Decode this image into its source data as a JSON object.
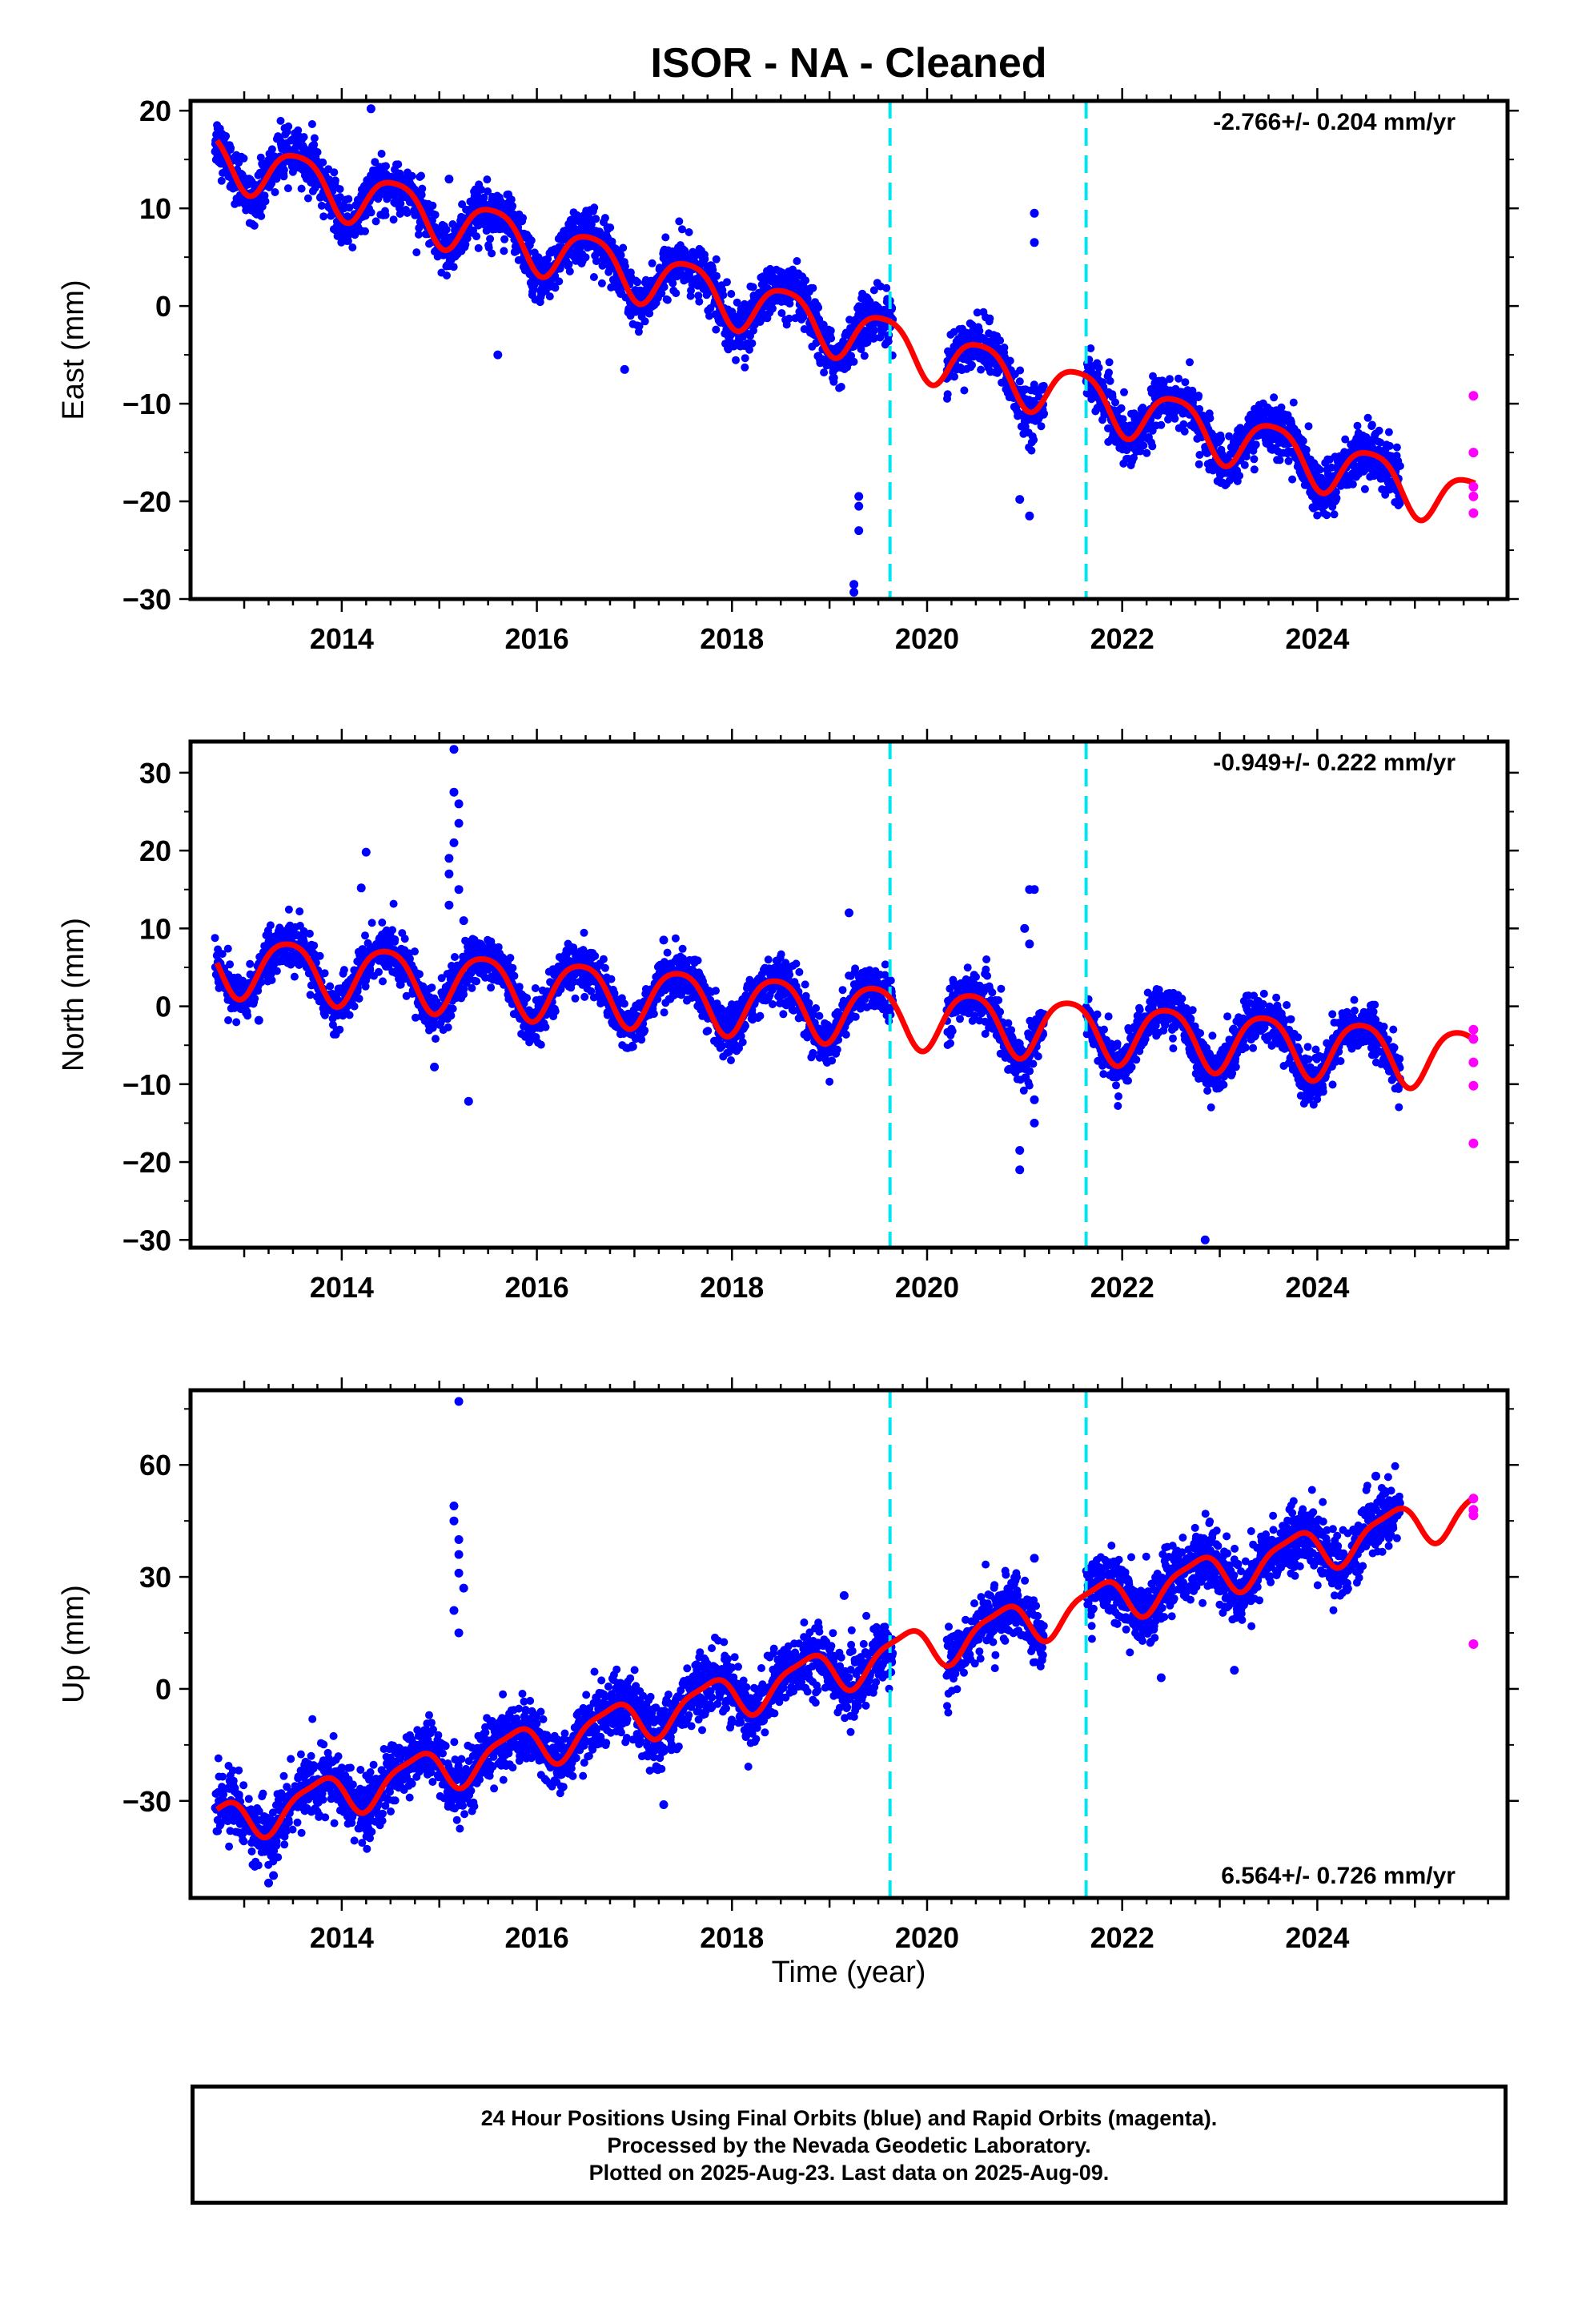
{
  "title": "ISOR  - NA - Cleaned",
  "xlabel": "Time (year)",
  "footer": {
    "line1": "24 Hour Positions Using Final Orbits (blue) and Rapid Orbits (magenta).",
    "line2": "Processed by the Nevada Geodetic Laboratory.",
    "line3": "Plotted on 2025-Aug-23. Last data on 2025-Aug-09."
  },
  "colors": {
    "final_orbits": "#0000ff",
    "rapid_orbits": "#ff00ff",
    "model": "#ff0000",
    "events": "#00e5ee"
  },
  "chart_data": [
    {
      "type": "scatter",
      "component": "East",
      "ylabel": "East (mm)",
      "rate_text": "-2.766+/- 0.204 mm/yr",
      "xlim": [
        2012.45,
        2025.95
      ],
      "ylim": [
        -30,
        21
      ],
      "xticks": [
        2014,
        2016,
        2018,
        2020,
        2022,
        2024
      ],
      "yticks": [
        -30,
        -20,
        -10,
        0,
        10,
        20
      ],
      "ytick_labels": [
        "−30",
        "−20",
        "−10",
        "0",
        "10",
        "20"
      ],
      "xtick_labels": [
        "2014",
        "2016",
        "2018",
        "2020",
        "2022",
        "2024"
      ],
      "event_lines": [
        2019.62,
        2021.63
      ],
      "data_segments": [
        [
          2012.7,
          2019.65
        ],
        [
          2020.2,
          2021.2
        ],
        [
          2021.63,
          2024.85
        ]
      ],
      "model": {
        "intercept_2019": -2.0,
        "rate": -2.766,
        "annual_amp": 2.7,
        "annual_peak": 2012.55,
        "semiannual_amp": 0.5,
        "semiannual_peak": 2012.8
      },
      "scatter_sd": 1.3,
      "rate_label_position": "top-right",
      "model_end": 2025.62,
      "outliers": [
        [
          2014.3,
          20.2
        ],
        [
          2019.25,
          -28.5
        ],
        [
          2019.25,
          -29.3
        ],
        [
          2019.3,
          -19.5
        ],
        [
          2019.3,
          -23
        ],
        [
          2019.3,
          -20.5
        ],
        [
          2021.1,
          9.5
        ],
        [
          2021.1,
          6.5
        ],
        [
          2021.05,
          -21.5
        ],
        [
          2020.95,
          -19.8
        ],
        [
          2015.6,
          -5
        ],
        [
          2016.9,
          -6.5
        ],
        [
          2015.1,
          13
        ]
      ],
      "rapid_points": [
        [
          2025.6,
          -9.2
        ],
        [
          2025.6,
          -15
        ],
        [
          2025.6,
          -18.5
        ],
        [
          2025.6,
          -19.5
        ],
        [
          2025.6,
          -21.2
        ]
      ]
    },
    {
      "type": "scatter",
      "component": "North",
      "ylabel": "North (mm)",
      "rate_text": "-0.949+/- 0.222 mm/yr",
      "xlim": [
        2012.45,
        2025.95
      ],
      "ylim": [
        -31,
        34
      ],
      "xticks": [
        2014,
        2016,
        2018,
        2020,
        2022,
        2024
      ],
      "yticks": [
        -30,
        -20,
        -10,
        0,
        10,
        20,
        30
      ],
      "ytick_labels": [
        "−30",
        "−20",
        "−10",
        "0",
        "10",
        "20",
        "30"
      ],
      "xtick_labels": [
        "2014",
        "2016",
        "2018",
        "2020",
        "2022",
        "2024"
      ],
      "event_lines": [
        2019.62,
        2021.63
      ],
      "data_segments": [
        [
          2012.7,
          2019.65
        ],
        [
          2020.2,
          2021.2
        ],
        [
          2021.63,
          2024.85
        ]
      ],
      "model": {
        "intercept_2019": -0.5,
        "rate": -0.949,
        "annual_amp": 3.8,
        "annual_peak": 2012.45,
        "semiannual_amp": 0.6,
        "semiannual_peak": 2012.7
      },
      "scatter_sd": 1.5,
      "rate_label_position": "top-right",
      "model_end": 2025.62,
      "outliers": [
        [
          2015.15,
          33
        ],
        [
          2015.15,
          27.5
        ],
        [
          2015.2,
          26
        ],
        [
          2015.2,
          23.5
        ],
        [
          2015.15,
          21
        ],
        [
          2015.1,
          19
        ],
        [
          2015.1,
          17
        ],
        [
          2015.2,
          15
        ],
        [
          2015.1,
          13
        ],
        [
          2015.25,
          11
        ],
        [
          2014.25,
          19.8
        ],
        [
          2014.2,
          15.2
        ],
        [
          2015.3,
          -12.2
        ],
        [
          2014.95,
          -7.8
        ],
        [
          2019.2,
          12
        ],
        [
          2021.1,
          15
        ],
        [
          2021.05,
          15
        ],
        [
          2021.0,
          10
        ],
        [
          2021.05,
          8
        ],
        [
          2021.1,
          -12
        ],
        [
          2021.1,
          -15
        ],
        [
          2020.95,
          -18.5
        ],
        [
          2020.95,
          -21
        ],
        [
          2022.85,
          -30
        ],
        [
          2017.3,
          8.5
        ],
        [
          2013.15,
          -1.8
        ]
      ],
      "rapid_points": [
        [
          2025.6,
          -3
        ],
        [
          2025.6,
          -4.2
        ],
        [
          2025.6,
          -7.2
        ],
        [
          2025.6,
          -10.2
        ],
        [
          2025.6,
          -17.6
        ]
      ]
    },
    {
      "type": "scatter",
      "component": "Up",
      "ylabel": "Up (mm)",
      "rate_text": "6.564+/- 0.726 mm/yr",
      "xlim": [
        2012.45,
        2025.95
      ],
      "ylim": [
        -56,
        80
      ],
      "xticks": [
        2014,
        2016,
        2018,
        2020,
        2022,
        2024
      ],
      "yticks": [
        -30,
        0,
        30,
        60
      ],
      "ytick_labels": [
        "−30",
        "0",
        "30",
        "60"
      ],
      "xtick_labels": [
        "2014",
        "2016",
        "2018",
        "2020",
        "2022",
        "2024"
      ],
      "event_lines": [
        2019.62,
        2021.63
      ],
      "data_segments": [
        [
          2012.7,
          2019.65
        ],
        [
          2020.2,
          2021.2
        ],
        [
          2021.63,
          2024.85
        ]
      ],
      "model": {
        "intercept_2019": 5,
        "rate": 6.564,
        "annual_amp": 5.5,
        "annual_peak": 2012.75,
        "semiannual_amp": 1.5,
        "semiannual_peak": 2012.95
      },
      "scatter_sd": 4.2,
      "rate_label_position": "bottom-right",
      "model_end": 2025.62,
      "outliers": [
        [
          2015.2,
          77
        ],
        [
          2015.15,
          49
        ],
        [
          2015.15,
          45
        ],
        [
          2015.2,
          40
        ],
        [
          2015.2,
          36
        ],
        [
          2015.2,
          31
        ],
        [
          2015.25,
          27
        ],
        [
          2015.15,
          21
        ],
        [
          2015.2,
          15
        ],
        [
          2019.15,
          25
        ],
        [
          2013.25,
          -52
        ],
        [
          2013.3,
          -50
        ],
        [
          2017.3,
          -31
        ],
        [
          2023.15,
          5
        ],
        [
          2022.4,
          3
        ],
        [
          2024.6,
          57
        ],
        [
          2021.1,
          35
        ]
      ],
      "rapid_points": [
        [
          2025.6,
          51
        ],
        [
          2025.6,
          48
        ],
        [
          2025.6,
          46.5
        ],
        [
          2025.6,
          12
        ]
      ]
    }
  ]
}
